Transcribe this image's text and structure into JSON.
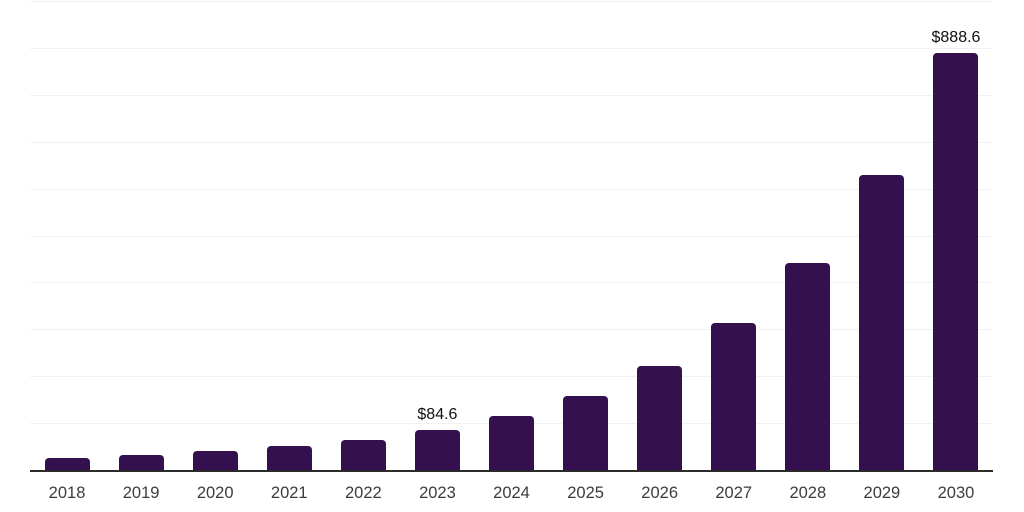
{
  "chart_data": {
    "type": "bar",
    "title": "",
    "subtitle": "",
    "xlabel": "",
    "ylabel": "",
    "categories": [
      "2018",
      "2019",
      "2020",
      "2021",
      "2022",
      "2023",
      "2024",
      "2025",
      "2026",
      "2027",
      "2028",
      "2029",
      "2030"
    ],
    "values": [
      25.7,
      32.2,
      40.9,
      51.1,
      64.4,
      84.6,
      114.6,
      158.7,
      220.9,
      312.7,
      440.8,
      628.6,
      888.6
    ],
    "labeled_points": [
      {
        "category": "2023",
        "label": "$84.6"
      },
      {
        "category": "2030",
        "label": "$888.6"
      }
    ],
    "ylim": [
      0,
      1000
    ],
    "gridline_step": 100,
    "grid": true,
    "legend": false,
    "y_axis_ticks_visible": false,
    "colors": {
      "bar": "#34114E",
      "axis_line": "#2B2B2B",
      "gridline": "#F1F1F3",
      "tick_label": "#3C3C3C",
      "data_label": "#111111"
    }
  }
}
